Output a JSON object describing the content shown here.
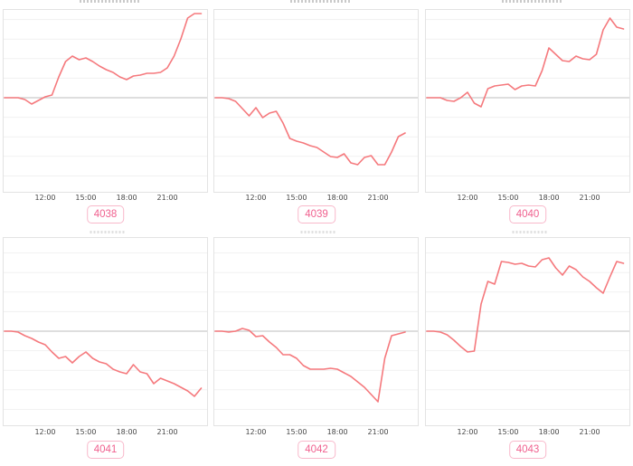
{
  "colors": {
    "line_color": "#f5797d",
    "zero_line_color": "#c9c9c9",
    "grid_color": "#f1f1f1",
    "plot_border_color": "#e3e3e3",
    "tick_text_color": "#474747",
    "badge_text_color": "#f0618f",
    "badge_border_color": "#f8b9cb",
    "background": "#ffffff"
  },
  "chart_data": [
    {
      "type": "line",
      "button_label": "4038",
      "x_ticks": [
        "12:00",
        "15:00",
        "18:00",
        "21:00"
      ],
      "x_tick_hours": [
        12,
        15,
        18,
        21
      ],
      "x_start_hour": 9,
      "x_interval_hours": 0.5,
      "x_range_hours": [
        9,
        23.5
      ],
      "y_axis_labels": "none",
      "y_unit": "px_from_zero_baseline",
      "zero_baseline": true,
      "grid": true,
      "legend": "none",
      "values": [
        0,
        0,
        0,
        -2,
        -7,
        -3,
        1,
        3,
        23,
        40,
        46,
        42,
        44,
        40,
        35,
        31,
        28,
        23,
        20,
        24,
        25,
        27,
        27,
        28,
        33,
        46,
        65,
        88,
        93,
        93
      ]
    },
    {
      "type": "line",
      "button_label": "4039",
      "x_ticks": [
        "12:00",
        "15:00",
        "18:00",
        "21:00"
      ],
      "x_tick_hours": [
        12,
        15,
        18,
        21
      ],
      "x_start_hour": 9,
      "x_interval_hours": 0.5,
      "x_range_hours": [
        9,
        23
      ],
      "y_axis_labels": "none",
      "y_unit": "px_from_zero_baseline",
      "zero_baseline": true,
      "grid": true,
      "legend": "none",
      "values": [
        0,
        0,
        -1,
        -4,
        -12,
        -20,
        -11,
        -22,
        -17,
        -15,
        -28,
        -45,
        -48,
        -50,
        -53,
        -55,
        -60,
        -65,
        -66,
        -62,
        -72,
        -74,
        -66,
        -64,
        -74,
        -74,
        -60,
        -43,
        -39
      ]
    },
    {
      "type": "line",
      "button_label": "4040",
      "x_ticks": [
        "12:00",
        "15:00",
        "18:00",
        "21:00"
      ],
      "x_tick_hours": [
        12,
        15,
        18,
        21
      ],
      "x_start_hour": 9,
      "x_interval_hours": 0.5,
      "x_range_hours": [
        9,
        23.5
      ],
      "y_axis_labels": "none",
      "y_unit": "px_from_zero_baseline",
      "zero_baseline": true,
      "grid": true,
      "legend": "none",
      "values": [
        0,
        0,
        0,
        -3,
        -4,
        0,
        6,
        -6,
        -10,
        10,
        13,
        14,
        15,
        9,
        13,
        14,
        13,
        30,
        55,
        48,
        41,
        40,
        46,
        43,
        42,
        48,
        75,
        88,
        78,
        76
      ]
    },
    {
      "type": "line",
      "button_label": "4041",
      "x_ticks": [
        "12:00",
        "15:00",
        "18:00",
        "21:00"
      ],
      "x_tick_hours": [
        12,
        15,
        18,
        21
      ],
      "x_start_hour": 9,
      "x_interval_hours": 0.5,
      "x_range_hours": [
        9,
        23.5
      ],
      "y_axis_labels": "none",
      "y_unit": "px_from_zero_baseline",
      "zero_baseline": true,
      "grid": true,
      "legend": "none",
      "values": [
        0,
        0,
        -1,
        -5,
        -8,
        -12,
        -15,
        -23,
        -30,
        -28,
        -35,
        -28,
        -23,
        -30,
        -34,
        -36,
        -42,
        -45,
        -47,
        -37,
        -45,
        -47,
        -58,
        -52,
        -55,
        -58,
        -62,
        -66,
        -72,
        -63
      ]
    },
    {
      "type": "line",
      "button_label": "4042",
      "x_ticks": [
        "12:00",
        "15:00",
        "18:00",
        "21:00"
      ],
      "x_tick_hours": [
        12,
        15,
        18,
        21
      ],
      "x_start_hour": 9,
      "x_interval_hours": 0.5,
      "x_range_hours": [
        9,
        23
      ],
      "y_axis_labels": "none",
      "y_unit": "px_from_zero_baseline",
      "zero_baseline": true,
      "grid": true,
      "legend": "none",
      "values": [
        0,
        0,
        -1,
        0,
        3,
        1,
        -6,
        -5,
        -12,
        -18,
        -26,
        -26,
        -30,
        -38,
        -42,
        -42,
        -42,
        -41,
        -42,
        -46,
        -50,
        -56,
        -62,
        -70,
        -78,
        -30,
        -5,
        -3,
        -1
      ]
    },
    {
      "type": "line",
      "button_label": "4043",
      "x_ticks": [
        "12:00",
        "15:00",
        "18:00",
        "21:00"
      ],
      "x_tick_hours": [
        12,
        15,
        18,
        21
      ],
      "x_start_hour": 9,
      "x_interval_hours": 0.5,
      "x_range_hours": [
        9,
        23.5
      ],
      "y_axis_labels": "none",
      "y_unit": "px_from_zero_baseline",
      "zero_baseline": true,
      "grid": true,
      "legend": "none",
      "values": [
        0,
        0,
        -1,
        -4,
        -10,
        -17,
        -23,
        -22,
        30,
        55,
        52,
        77,
        76,
        74,
        75,
        72,
        71,
        79,
        81,
        70,
        62,
        72,
        68,
        60,
        55,
        48,
        42,
        60,
        77,
        75
      ]
    }
  ]
}
